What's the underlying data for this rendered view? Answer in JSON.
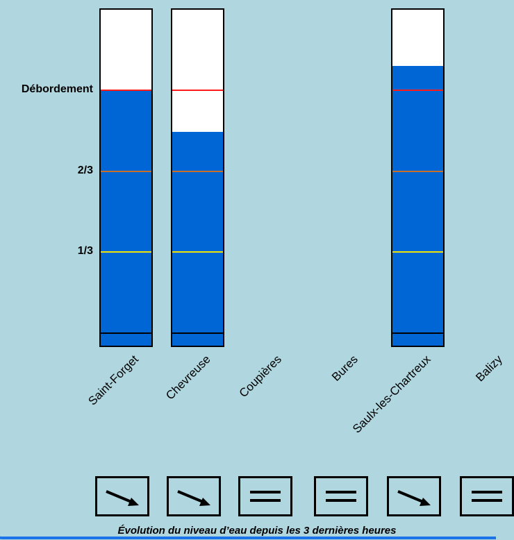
{
  "chart_data": {
    "type": "bar",
    "level_labels": [
      "Débordement",
      "2/3",
      "1/3"
    ],
    "level_colors": {
      "Débordement": "#ff1a1a",
      "2/3": "#c8702a",
      "1/3": "#f2e600"
    },
    "fill_color": "#0066d6",
    "stations": [
      {
        "name": "Saint-Forget",
        "level": 1.0,
        "trend": "down",
        "gauge": true
      },
      {
        "name": "Chevreuse",
        "level": 0.83,
        "trend": "down",
        "gauge": true
      },
      {
        "name": "Coupières",
        "level": null,
        "trend": "stable",
        "gauge": false
      },
      {
        "name": "Bures",
        "level": null,
        "trend": "stable",
        "gauge": false
      },
      {
        "name": "Saulx-les-Chartreux",
        "level": 1.1,
        "trend": "down",
        "gauge": true
      },
      {
        "name": "Balizy",
        "level": null,
        "trend": "stable",
        "gauge": false
      }
    ],
    "ylim": [
      0,
      1.35
    ]
  },
  "caption": "Évolution du niveau d’eau depuis les 3 dernières heures"
}
